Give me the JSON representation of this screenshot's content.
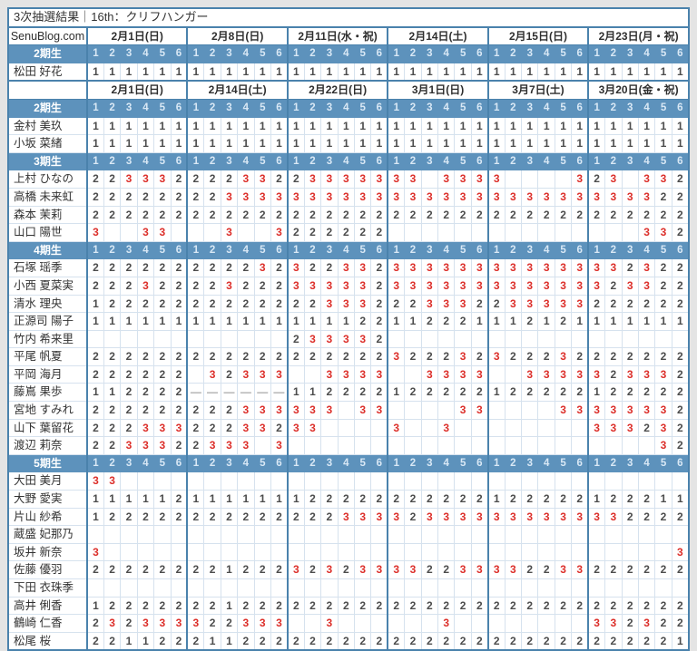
{
  "page_title": "3次抽選結果｜16th：クリフハンガー",
  "brand": "SenuBlog.com",
  "legend_note": "cell values: '1','2','3' = lottery result rank, '.' = empty cell, '-' = dash (not held)",
  "colors": {
    "accent_border": "#4a82ac",
    "section_bar": "#5d92bc",
    "red_value": "#dc2f2a",
    "digit_gray": "#4c4c4c",
    "grid_line": "#d6e2ee",
    "page_background": "#e4e4e4"
  },
  "column_numbers": [
    "1",
    "2",
    "3",
    "4",
    "5",
    "6"
  ],
  "blocks": [
    {
      "show_brand": true,
      "dates": [
        "2月1日(日)",
        "2月8日(日)",
        "2月11日(水・祝)",
        "2月14日(土)",
        "2月15日(日)",
        "2月23日(月・祝)"
      ],
      "sections": [
        {
          "label": "2期生",
          "members": [
            {
              "name": "松田 好花",
              "values": [
                "111111",
                "111111",
                "111111",
                "111111",
                "111111",
                "111111"
              ]
            }
          ]
        }
      ]
    },
    {
      "show_brand": false,
      "dates": [
        "2月1日(日)",
        "2月14日(土)",
        "2月22日(日)",
        "3月1日(日)",
        "3月7日(土)",
        "3月20日(金・祝)"
      ],
      "sections": [
        {
          "label": "2期生",
          "members": [
            {
              "name": "金村 美玖",
              "values": [
                "111111",
                "111111",
                "111111",
                "111111",
                "111111",
                "111111"
              ]
            },
            {
              "name": "小坂 菜緒",
              "values": [
                "111111",
                "111111",
                "111111",
                "111111",
                "111111",
                "111111"
              ]
            }
          ]
        },
        {
          "label": "3期生",
          "members": [
            {
              "name": "上村 ひなの",
              "values": [
                "223332",
                "222332",
                "233333",
                "33.333",
                "3....3",
                "23.332"
              ]
            },
            {
              "name": "高橋 未来虹",
              "values": [
                "222222",
                "223333",
                "333333",
                "333333",
                "333333",
                "333322"
              ]
            },
            {
              "name": "森本 茉莉",
              "values": [
                "222222",
                "222222",
                "222222",
                "222222",
                "222222",
                "222222"
              ]
            },
            {
              "name": "山口 陽世",
              "values": [
                "3..33.",
                "..3..3",
                "222222",
                "......",
                "......",
                "...332"
              ]
            }
          ]
        },
        {
          "label": "4期生",
          "members": [
            {
              "name": "石塚 瑶季",
              "values": [
                "222222",
                "222232",
                "322332",
                "333333",
                "333333",
                "332322"
              ]
            },
            {
              "name": "小西 夏菜実",
              "values": [
                "222322",
                "223222",
                "333332",
                "333333",
                "333333",
                "323322"
              ]
            },
            {
              "name": "清水 理央",
              "values": [
                "122222",
                "222222",
                "223332",
                "223332",
                "233333",
                "222222"
              ]
            },
            {
              "name": "正源司 陽子",
              "values": [
                "111111",
                "111111",
                "111122",
                "112221",
                "112121",
                "111111"
              ]
            },
            {
              "name": "竹内 希来里",
              "values": [
                "......",
                "......",
                "233332",
                "......",
                "......",
                "......"
              ]
            },
            {
              "name": "平尾 帆夏",
              "values": [
                "222222",
                "222222",
                "222222",
                "322232",
                "322232",
                "222222"
              ]
            },
            {
              "name": "平岡 海月",
              "values": [
                "222222",
                ".32333",
                "..3333",
                "..3333",
                "..3333",
                "323332"
              ]
            },
            {
              "name": "藤嶌 果歩",
              "values": [
                "112222",
                "------",
                "112222",
                "122222",
                "122222",
                "122222"
              ]
            },
            {
              "name": "宮地 すみれ",
              "values": [
                "222222",
                "222333",
                "333.33",
                "....33",
                "....33",
                "333332"
              ]
            },
            {
              "name": "山下 葉留花",
              "values": [
                "222333",
                "222332",
                "33....",
                "3..3..",
                "......",
                "333232"
              ]
            },
            {
              "name": "渡辺 莉奈",
              "values": [
                "223332",
                "2333.3",
                "......",
                "......",
                "......",
                "....32"
              ]
            }
          ]
        },
        {
          "label": "5期生",
          "members": [
            {
              "name": "大田 美月",
              "values": [
                "33....",
                "......",
                "......",
                "......",
                "......",
                "......"
              ]
            },
            {
              "name": "大野 愛実",
              "values": [
                "111112",
                "111111",
                "122222",
                "222222",
                "122222",
                "122211"
              ]
            },
            {
              "name": "片山 紗希",
              "values": [
                "122222",
                "222222",
                "222333",
                "323333",
                "333333",
                "332222"
              ]
            },
            {
              "name": "蔵盛 妃那乃",
              "values": [
                "......",
                "......",
                "......",
                "......",
                "......",
                "......"
              ]
            },
            {
              "name": "坂井 新奈",
              "values": [
                "3.....",
                "......",
                "......",
                "......",
                "......",
                ".....3"
              ]
            },
            {
              "name": "佐藤 優羽",
              "values": [
                "222222",
                "221222",
                "323233",
                "332233",
                "332233",
                "222222"
              ]
            },
            {
              "name": "下田 衣珠季",
              "values": [
                "......",
                "......",
                "......",
                "......",
                "......",
                "......"
              ]
            },
            {
              "name": "高井 俐香",
              "values": [
                "122222",
                "221222",
                "222222",
                "222222",
                "222222",
                "222222"
              ]
            },
            {
              "name": "鶴崎 仁香",
              "values": [
                "232333",
                "322333",
                "..3...",
                "...3..",
                "......",
                "332322"
              ]
            },
            {
              "name": "松尾 桜",
              "values": [
                "221122",
                "211222",
                "222222",
                "222222",
                "222222",
                "222221"
              ]
            }
          ]
        }
      ]
    }
  ]
}
